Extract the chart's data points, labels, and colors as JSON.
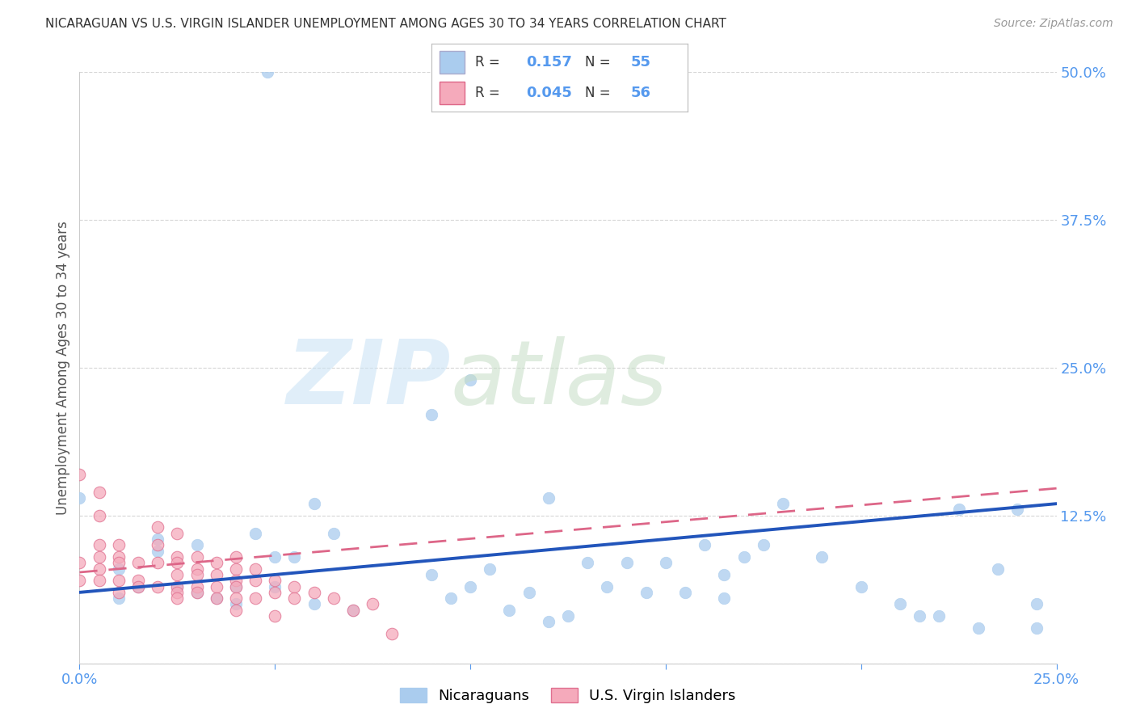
{
  "title": "NICARAGUAN VS U.S. VIRGIN ISLANDER UNEMPLOYMENT AMONG AGES 30 TO 34 YEARS CORRELATION CHART",
  "source": "Source: ZipAtlas.com",
  "ylabel": "Unemployment Among Ages 30 to 34 years",
  "xlim": [
    0.0,
    0.25
  ],
  "ylim": [
    0.0,
    0.5
  ],
  "xticks": [
    0.0,
    0.05,
    0.1,
    0.15,
    0.2,
    0.25
  ],
  "yticks": [
    0.0,
    0.125,
    0.25,
    0.375,
    0.5
  ],
  "background_color": "#ffffff",
  "grid_color": "#cccccc",
  "blue_color": "#aaccee",
  "blue_edge_color": "#aaccee",
  "blue_line_color": "#2255BB",
  "pink_color": "#f5aabb",
  "pink_edge_color": "#e07090",
  "pink_line_color": "#dd6688",
  "legend_R_blue": "0.157",
  "legend_N_blue": "55",
  "legend_R_pink": "0.045",
  "legend_N_pink": "56",
  "legend_label_blue": "Nicaraguans",
  "legend_label_pink": "U.S. Virgin Islanders",
  "blue_scatter_x": [
    0.048,
    0.0,
    0.1,
    0.09,
    0.03,
    0.06,
    0.065,
    0.02,
    0.02,
    0.12,
    0.13,
    0.135,
    0.14,
    0.15,
    0.16,
    0.165,
    0.17,
    0.175,
    0.18,
    0.19,
    0.2,
    0.21,
    0.215,
    0.22,
    0.225,
    0.23,
    0.235,
    0.24,
    0.245,
    0.245,
    0.01,
    0.01,
    0.015,
    0.025,
    0.03,
    0.035,
    0.04,
    0.04,
    0.045,
    0.05,
    0.05,
    0.055,
    0.06,
    0.07,
    0.09,
    0.095,
    0.1,
    0.105,
    0.11,
    0.115,
    0.12,
    0.125,
    0.145,
    0.155,
    0.165
  ],
  "blue_scatter_y": [
    0.5,
    0.14,
    0.24,
    0.21,
    0.1,
    0.135,
    0.11,
    0.105,
    0.095,
    0.14,
    0.085,
    0.065,
    0.085,
    0.085,
    0.1,
    0.075,
    0.09,
    0.1,
    0.135,
    0.09,
    0.065,
    0.05,
    0.04,
    0.04,
    0.13,
    0.03,
    0.08,
    0.13,
    0.05,
    0.03,
    0.08,
    0.055,
    0.065,
    0.065,
    0.06,
    0.055,
    0.065,
    0.05,
    0.11,
    0.09,
    0.065,
    0.09,
    0.05,
    0.045,
    0.075,
    0.055,
    0.065,
    0.08,
    0.045,
    0.06,
    0.035,
    0.04,
    0.06,
    0.06,
    0.055
  ],
  "pink_scatter_x": [
    0.0,
    0.0,
    0.0,
    0.005,
    0.005,
    0.005,
    0.005,
    0.005,
    0.005,
    0.01,
    0.01,
    0.01,
    0.01,
    0.01,
    0.015,
    0.015,
    0.015,
    0.02,
    0.02,
    0.02,
    0.02,
    0.025,
    0.025,
    0.025,
    0.025,
    0.025,
    0.025,
    0.025,
    0.03,
    0.03,
    0.03,
    0.03,
    0.03,
    0.035,
    0.035,
    0.035,
    0.035,
    0.04,
    0.04,
    0.04,
    0.04,
    0.04,
    0.04,
    0.045,
    0.045,
    0.045,
    0.05,
    0.05,
    0.05,
    0.055,
    0.055,
    0.06,
    0.065,
    0.07,
    0.075,
    0.08
  ],
  "pink_scatter_y": [
    0.16,
    0.085,
    0.07,
    0.145,
    0.125,
    0.1,
    0.09,
    0.08,
    0.07,
    0.1,
    0.09,
    0.085,
    0.07,
    0.06,
    0.085,
    0.07,
    0.065,
    0.115,
    0.1,
    0.085,
    0.065,
    0.11,
    0.09,
    0.085,
    0.075,
    0.065,
    0.06,
    0.055,
    0.09,
    0.08,
    0.075,
    0.065,
    0.06,
    0.085,
    0.075,
    0.065,
    0.055,
    0.09,
    0.08,
    0.07,
    0.065,
    0.055,
    0.045,
    0.08,
    0.07,
    0.055,
    0.07,
    0.06,
    0.04,
    0.065,
    0.055,
    0.06,
    0.055,
    0.045,
    0.05,
    0.025
  ],
  "blue_trend_x": [
    0.0,
    0.25
  ],
  "blue_trend_y": [
    0.06,
    0.135
  ],
  "pink_trend_x": [
    0.0,
    0.25
  ],
  "pink_trend_y": [
    0.077,
    0.148
  ]
}
